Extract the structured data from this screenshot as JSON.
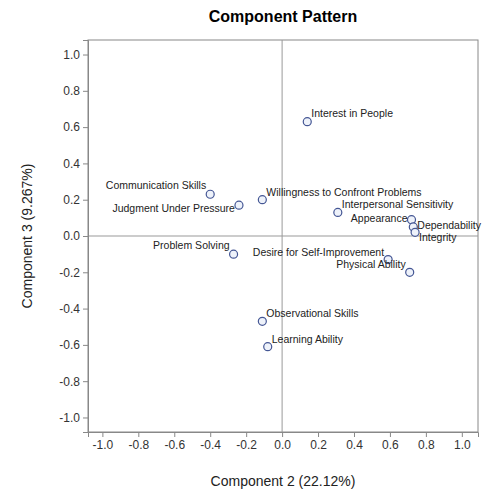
{
  "chart_data": {
    "type": "scatter",
    "title": "Component Pattern",
    "x_label": "Component 2 (22.12%)",
    "y_label": "Component 3 (9.267%)",
    "labels": [
      "Interest in People",
      "Communication Skills",
      "Judgment Under Pressure",
      "Willingness to Confront Problems",
      "Interpersonal Sensitivity",
      "Appearance",
      "Dependability",
      "Integrity",
      "Problem Solving",
      "Desire for Self-Improvement",
      "Physical Ability",
      "Observational Skills",
      "Learning Ability"
    ],
    "x": [
      0.14,
      -0.4,
      -0.24,
      -0.11,
      0.31,
      0.72,
      0.73,
      0.74,
      -0.27,
      0.59,
      0.71,
      -0.11,
      -0.08
    ],
    "values": [
      0.63,
      0.23,
      0.17,
      0.2,
      0.13,
      0.09,
      0.05,
      0.02,
      -0.1,
      -0.13,
      -0.2,
      -0.47,
      -0.61
    ],
    "color": "#445694",
    "marker": "circle",
    "grid": false,
    "xlim": [
      -1.08,
      1.09
    ],
    "ylim": [
      -1.08,
      1.08
    ],
    "xticks": [
      {
        "value": -1.0,
        "label": "-1.0"
      },
      {
        "value": -0.8,
        "label": "-0.8"
      },
      {
        "value": -0.6,
        "label": "-0.6"
      },
      {
        "value": -0.4,
        "label": "-0.4"
      },
      {
        "value": -0.2,
        "label": "-0.2"
      },
      {
        "value": 0,
        "label": "0.0"
      },
      {
        "value": 0.2,
        "label": "0.2"
      },
      {
        "value": 0.4,
        "label": "0.4"
      },
      {
        "value": 0.6,
        "label": "0.6"
      },
      {
        "value": 0.8,
        "label": "0.8"
      },
      {
        "value": 1.0,
        "label": "1.0"
      }
    ],
    "yticks": [
      {
        "value": -1.0,
        "label": "-1.0"
      },
      {
        "value": -0.8,
        "label": "-0.8"
      },
      {
        "value": -0.6,
        "label": "-0.6"
      },
      {
        "value": -0.4,
        "label": "-0.4"
      },
      {
        "value": -0.2,
        "label": "-0.2"
      },
      {
        "value": 0,
        "label": "0.0"
      },
      {
        "value": 0.2,
        "label": "0.2"
      },
      {
        "value": 0.4,
        "label": "0.4"
      },
      {
        "value": 0.6,
        "label": "0.6"
      },
      {
        "value": 0.8,
        "label": "0.8"
      },
      {
        "value": 1.0,
        "label": "1.0"
      }
    ]
  }
}
